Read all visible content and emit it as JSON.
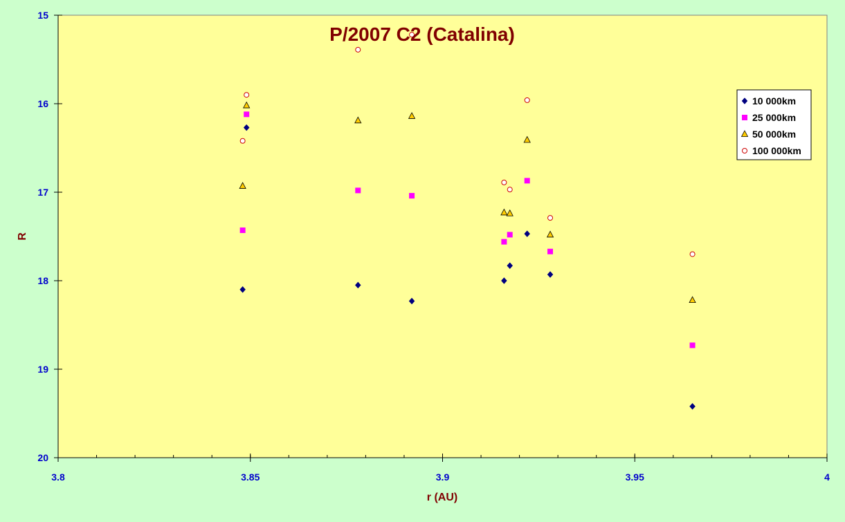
{
  "chart_data": {
    "type": "scatter",
    "title": "P/2007 C2 (Catalina)",
    "xlabel": "r (AU)",
    "ylabel": "R",
    "xlim": [
      3.8,
      4.0
    ],
    "ylim": [
      15,
      20
    ],
    "y_inverted": true,
    "x_ticks": [
      3.8,
      3.85,
      3.9,
      3.95,
      4
    ],
    "x_tick_labels": [
      "3.8",
      "3.85",
      "3.9",
      "3.95",
      "4"
    ],
    "x_minor_step": 0.01,
    "y_ticks": [
      15,
      16,
      17,
      18,
      19,
      20
    ],
    "y_tick_labels": [
      "15",
      "16",
      "17",
      "18",
      "19",
      "20"
    ],
    "grid": false,
    "legend_position": "top-right",
    "colors": {
      "page_background": "#ccffcc",
      "plot_background": "#ffff99",
      "title": "#800000",
      "axis_label": "#800000",
      "tick_label": "#0000cc"
    },
    "series": [
      {
        "name": "10 000km",
        "marker": "diamond",
        "color": "#000080",
        "points": [
          {
            "x": 3.848,
            "y": 18.1
          },
          {
            "x": 3.849,
            "y": 16.27
          },
          {
            "x": 3.878,
            "y": 18.05
          },
          {
            "x": 3.892,
            "y": 18.23
          },
          {
            "x": 3.916,
            "y": 18.0
          },
          {
            "x": 3.9175,
            "y": 17.83
          },
          {
            "x": 3.922,
            "y": 17.47
          },
          {
            "x": 3.928,
            "y": 17.93
          },
          {
            "x": 3.965,
            "y": 19.42
          }
        ]
      },
      {
        "name": "25 000km",
        "marker": "square",
        "color": "#ff00ff",
        "points": [
          {
            "x": 3.848,
            "y": 17.43
          },
          {
            "x": 3.849,
            "y": 16.12
          },
          {
            "x": 3.878,
            "y": 16.98
          },
          {
            "x": 3.892,
            "y": 17.04
          },
          {
            "x": 3.916,
            "y": 17.56
          },
          {
            "x": 3.9175,
            "y": 17.48
          },
          {
            "x": 3.922,
            "y": 16.87
          },
          {
            "x": 3.928,
            "y": 17.67
          },
          {
            "x": 3.965,
            "y": 18.73
          }
        ]
      },
      {
        "name": "50 000km",
        "marker": "triangle",
        "color": "#ffcc00",
        "points": [
          {
            "x": 3.848,
            "y": 16.93
          },
          {
            "x": 3.849,
            "y": 16.02
          },
          {
            "x": 3.878,
            "y": 16.19
          },
          {
            "x": 3.892,
            "y": 16.14
          },
          {
            "x": 3.916,
            "y": 17.23
          },
          {
            "x": 3.9175,
            "y": 17.24
          },
          {
            "x": 3.922,
            "y": 16.41
          },
          {
            "x": 3.928,
            "y": 17.48
          },
          {
            "x": 3.965,
            "y": 18.22
          }
        ]
      },
      {
        "name": "100 000km",
        "marker": "circle",
        "color": "#ffffff",
        "points": [
          {
            "x": 3.848,
            "y": 16.42
          },
          {
            "x": 3.849,
            "y": 15.9
          },
          {
            "x": 3.878,
            "y": 15.39
          },
          {
            "x": 3.892,
            "y": 15.22
          },
          {
            "x": 3.916,
            "y": 16.89
          },
          {
            "x": 3.9175,
            "y": 16.97
          },
          {
            "x": 3.922,
            "y": 15.96
          },
          {
            "x": 3.928,
            "y": 17.29
          },
          {
            "x": 3.965,
            "y": 17.7
          }
        ]
      }
    ]
  }
}
